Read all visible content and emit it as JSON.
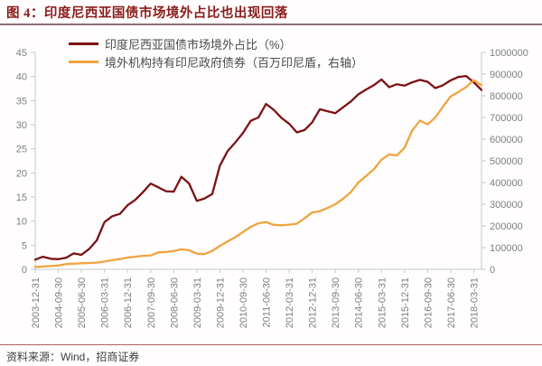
{
  "header": {
    "title": "图 4：印度尼西亚国债市场境外占比也出现回落"
  },
  "footer": {
    "source": "资料来源：Wind，招商证券"
  },
  "colors": {
    "title_text": "#8B1A1A",
    "rule_top": "#8F7078",
    "rule_bottom": "#A8625D",
    "axis_line": "#C9C9C9",
    "axis_label": "#7F7F7F",
    "legend_text": "#4a4a4a",
    "background": "#FFFFFF"
  },
  "chart_data": {
    "type": "line",
    "title": "",
    "xlabel": "",
    "ylabel_left": "",
    "ylabel_right": "",
    "grid": false,
    "legend_position": "top",
    "left_axis": {
      "min": 0,
      "max": 45,
      "step": 5,
      "tick_labels": [
        "0",
        "5",
        "10",
        "15",
        "20",
        "25",
        "30",
        "35",
        "40",
        "45"
      ]
    },
    "right_axis": {
      "min": 0,
      "max": 1000000,
      "step": 100000,
      "tick_labels": [
        "0",
        "100000",
        "200000",
        "300000",
        "400000",
        "500000",
        "600000",
        "700000",
        "800000",
        "900000",
        "1000000"
      ]
    },
    "x_frequency": "quarterly",
    "x_range": [
      "2003-12-31",
      "2018-06-30"
    ],
    "x_ticks": {
      "indices": [
        0,
        3,
        6,
        9,
        12,
        15,
        18,
        21,
        24,
        27,
        30,
        33,
        36,
        39,
        42,
        45,
        48,
        51,
        54,
        57
      ],
      "labels": [
        "2003-12-31",
        "2004-09-30",
        "2005-06-30",
        "2006-03-31",
        "2006-12-31",
        "2007-09-30",
        "2008-06-30",
        "2009-03-31",
        "2009-12-31",
        "2010-09-30",
        "2011-06-30",
        "2012-03-31",
        "2012-12-31",
        "2013-09-30",
        "2014-06-30",
        "2015-03-31",
        "2015-12-31",
        "2016-09-30",
        "2017-06-30",
        "2018-03-31"
      ]
    },
    "series": [
      {
        "name": "印度尼西亚国债市场境外占比（%）",
        "axis": "left",
        "color": "#7B1214",
        "values": [
          2.0,
          2.6,
          2.2,
          2.1,
          2.4,
          3.3,
          3.0,
          4.2,
          6.0,
          9.8,
          11.0,
          11.5,
          13.3,
          14.4,
          16.0,
          17.8,
          17.0,
          16.2,
          16.1,
          19.2,
          17.8,
          14.2,
          14.7,
          15.6,
          21.5,
          24.5,
          26.3,
          28.3,
          30.8,
          31.5,
          34.3,
          33.1,
          31.4,
          30.2,
          28.4,
          28.9,
          30.5,
          33.2,
          32.8,
          32.4,
          33.6,
          34.8,
          36.3,
          37.3,
          38.2,
          39.4,
          37.8,
          38.4,
          38.1,
          38.8,
          39.3,
          38.9,
          37.6,
          38.2,
          39.2,
          39.9,
          40.1,
          38.8,
          37.2
        ]
      },
      {
        "name": "境外机构持有印尼政府债券（百万印尼盾，右轴）",
        "axis": "right",
        "color": "#EFA440",
        "values": [
          11000,
          13000,
          15000,
          18000,
          24000,
          26000,
          28000,
          29000,
          31000,
          36000,
          42000,
          47000,
          54000,
          58000,
          62000,
          64000,
          78000,
          80000,
          84000,
          92000,
          88000,
          72000,
          70000,
          85000,
          108000,
          128000,
          148000,
          172000,
          196000,
          212000,
          218000,
          205000,
          203000,
          206000,
          210000,
          235000,
          262000,
          268000,
          283000,
          300000,
          325000,
          355000,
          400000,
          430000,
          461000,
          505000,
          530000,
          525000,
          560000,
          640000,
          686000,
          668000,
          700000,
          750000,
          797000,
          818000,
          840000,
          872000,
          848000
        ]
      }
    ]
  }
}
